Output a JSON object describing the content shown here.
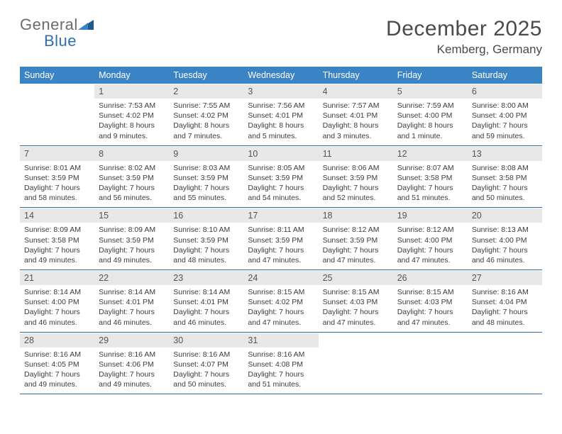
{
  "logo": {
    "general": "General",
    "blue": "Blue",
    "triangle_color_dark": "#1f5a8f",
    "triangle_color_light": "#3a84c5"
  },
  "title": {
    "month_year": "December 2025",
    "location": "Kemberg, Germany"
  },
  "colors": {
    "header_bg": "#3a84c5",
    "header_text": "#ffffff",
    "daynum_bg": "#e8e8e8",
    "daynum_text": "#555555",
    "body_text": "#3c3c3c",
    "week_divider": "#2d6aa8"
  },
  "weekdays": [
    "Sunday",
    "Monday",
    "Tuesday",
    "Wednesday",
    "Thursday",
    "Friday",
    "Saturday"
  ],
  "weeks": [
    [
      {
        "num": "",
        "lines": []
      },
      {
        "num": "1",
        "lines": [
          "Sunrise: 7:53 AM",
          "Sunset: 4:02 PM",
          "Daylight: 8 hours",
          "and 9 minutes."
        ]
      },
      {
        "num": "2",
        "lines": [
          "Sunrise: 7:55 AM",
          "Sunset: 4:02 PM",
          "Daylight: 8 hours",
          "and 7 minutes."
        ]
      },
      {
        "num": "3",
        "lines": [
          "Sunrise: 7:56 AM",
          "Sunset: 4:01 PM",
          "Daylight: 8 hours",
          "and 5 minutes."
        ]
      },
      {
        "num": "4",
        "lines": [
          "Sunrise: 7:57 AM",
          "Sunset: 4:01 PM",
          "Daylight: 8 hours",
          "and 3 minutes."
        ]
      },
      {
        "num": "5",
        "lines": [
          "Sunrise: 7:59 AM",
          "Sunset: 4:00 PM",
          "Daylight: 8 hours",
          "and 1 minute."
        ]
      },
      {
        "num": "6",
        "lines": [
          "Sunrise: 8:00 AM",
          "Sunset: 4:00 PM",
          "Daylight: 7 hours",
          "and 59 minutes."
        ]
      }
    ],
    [
      {
        "num": "7",
        "lines": [
          "Sunrise: 8:01 AM",
          "Sunset: 3:59 PM",
          "Daylight: 7 hours",
          "and 58 minutes."
        ]
      },
      {
        "num": "8",
        "lines": [
          "Sunrise: 8:02 AM",
          "Sunset: 3:59 PM",
          "Daylight: 7 hours",
          "and 56 minutes."
        ]
      },
      {
        "num": "9",
        "lines": [
          "Sunrise: 8:03 AM",
          "Sunset: 3:59 PM",
          "Daylight: 7 hours",
          "and 55 minutes."
        ]
      },
      {
        "num": "10",
        "lines": [
          "Sunrise: 8:05 AM",
          "Sunset: 3:59 PM",
          "Daylight: 7 hours",
          "and 54 minutes."
        ]
      },
      {
        "num": "11",
        "lines": [
          "Sunrise: 8:06 AM",
          "Sunset: 3:59 PM",
          "Daylight: 7 hours",
          "and 52 minutes."
        ]
      },
      {
        "num": "12",
        "lines": [
          "Sunrise: 8:07 AM",
          "Sunset: 3:58 PM",
          "Daylight: 7 hours",
          "and 51 minutes."
        ]
      },
      {
        "num": "13",
        "lines": [
          "Sunrise: 8:08 AM",
          "Sunset: 3:58 PM",
          "Daylight: 7 hours",
          "and 50 minutes."
        ]
      }
    ],
    [
      {
        "num": "14",
        "lines": [
          "Sunrise: 8:09 AM",
          "Sunset: 3:58 PM",
          "Daylight: 7 hours",
          "and 49 minutes."
        ]
      },
      {
        "num": "15",
        "lines": [
          "Sunrise: 8:09 AM",
          "Sunset: 3:59 PM",
          "Daylight: 7 hours",
          "and 49 minutes."
        ]
      },
      {
        "num": "16",
        "lines": [
          "Sunrise: 8:10 AM",
          "Sunset: 3:59 PM",
          "Daylight: 7 hours",
          "and 48 minutes."
        ]
      },
      {
        "num": "17",
        "lines": [
          "Sunrise: 8:11 AM",
          "Sunset: 3:59 PM",
          "Daylight: 7 hours",
          "and 47 minutes."
        ]
      },
      {
        "num": "18",
        "lines": [
          "Sunrise: 8:12 AM",
          "Sunset: 3:59 PM",
          "Daylight: 7 hours",
          "and 47 minutes."
        ]
      },
      {
        "num": "19",
        "lines": [
          "Sunrise: 8:12 AM",
          "Sunset: 4:00 PM",
          "Daylight: 7 hours",
          "and 47 minutes."
        ]
      },
      {
        "num": "20",
        "lines": [
          "Sunrise: 8:13 AM",
          "Sunset: 4:00 PM",
          "Daylight: 7 hours",
          "and 46 minutes."
        ]
      }
    ],
    [
      {
        "num": "21",
        "lines": [
          "Sunrise: 8:14 AM",
          "Sunset: 4:00 PM",
          "Daylight: 7 hours",
          "and 46 minutes."
        ]
      },
      {
        "num": "22",
        "lines": [
          "Sunrise: 8:14 AM",
          "Sunset: 4:01 PM",
          "Daylight: 7 hours",
          "and 46 minutes."
        ]
      },
      {
        "num": "23",
        "lines": [
          "Sunrise: 8:14 AM",
          "Sunset: 4:01 PM",
          "Daylight: 7 hours",
          "and 46 minutes."
        ]
      },
      {
        "num": "24",
        "lines": [
          "Sunrise: 8:15 AM",
          "Sunset: 4:02 PM",
          "Daylight: 7 hours",
          "and 47 minutes."
        ]
      },
      {
        "num": "25",
        "lines": [
          "Sunrise: 8:15 AM",
          "Sunset: 4:03 PM",
          "Daylight: 7 hours",
          "and 47 minutes."
        ]
      },
      {
        "num": "26",
        "lines": [
          "Sunrise: 8:15 AM",
          "Sunset: 4:03 PM",
          "Daylight: 7 hours",
          "and 47 minutes."
        ]
      },
      {
        "num": "27",
        "lines": [
          "Sunrise: 8:16 AM",
          "Sunset: 4:04 PM",
          "Daylight: 7 hours",
          "and 48 minutes."
        ]
      }
    ],
    [
      {
        "num": "28",
        "lines": [
          "Sunrise: 8:16 AM",
          "Sunset: 4:05 PM",
          "Daylight: 7 hours",
          "and 49 minutes."
        ]
      },
      {
        "num": "29",
        "lines": [
          "Sunrise: 8:16 AM",
          "Sunset: 4:06 PM",
          "Daylight: 7 hours",
          "and 49 minutes."
        ]
      },
      {
        "num": "30",
        "lines": [
          "Sunrise: 8:16 AM",
          "Sunset: 4:07 PM",
          "Daylight: 7 hours",
          "and 50 minutes."
        ]
      },
      {
        "num": "31",
        "lines": [
          "Sunrise: 8:16 AM",
          "Sunset: 4:08 PM",
          "Daylight: 7 hours",
          "and 51 minutes."
        ]
      },
      {
        "num": "",
        "lines": []
      },
      {
        "num": "",
        "lines": []
      },
      {
        "num": "",
        "lines": []
      }
    ]
  ]
}
